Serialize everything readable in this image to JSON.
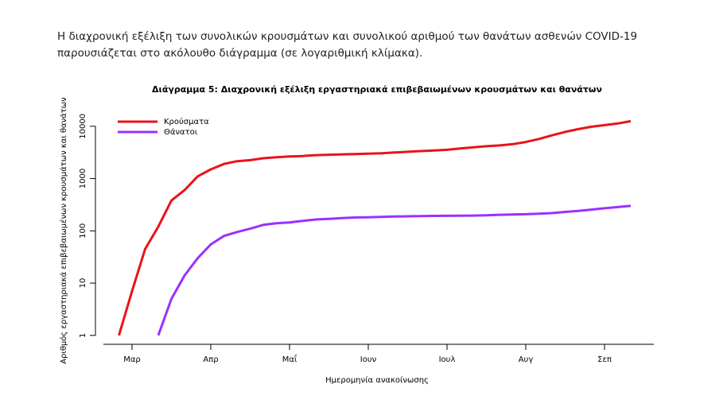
{
  "text": "Η διαχρονική εξέλιξη των συνολικών κρουσμάτων και συνολικού αριθμού των θανάτων ασθενών COVID-19 παρουσιάζεται στο ακόλουθο διάγραμμα (σε λογαριθμική κλίμακα).",
  "chart_data": {
    "type": "line",
    "title": "Διάγραμμα 5: Διαχρονική εξέλιξη εργαστηριακά επιβεβαιωμένων κρουσμάτων και θανάτων",
    "x_label": "Ημερομηνία ανακοίνωσης",
    "y_label": "Αριθμός εργαστηριακά επιβεβαιωμένων κρουσμάτων και θανάτων",
    "categories": [
      null,
      "Μαρ",
      null,
      null,
      null,
      null,
      null,
      "Απρ",
      null,
      null,
      null,
      null,
      null,
      "Μαΐ",
      null,
      null,
      null,
      null,
      null,
      "Ιουν",
      null,
      null,
      null,
      null,
      null,
      "Ιουλ",
      null,
      null,
      null,
      null,
      null,
      "Αυγ",
      null,
      null,
      null,
      null,
      null,
      "Σεπ",
      null,
      null
    ],
    "series": [
      {
        "name": "Κρούσματα",
        "color": "#e8131b",
        "values": [
          1,
          7,
          45,
          120,
          380,
          600,
          1100,
          1500,
          1900,
          2150,
          2250,
          2450,
          2550,
          2650,
          2700,
          2800,
          2850,
          2900,
          2950,
          3000,
          3050,
          3150,
          3250,
          3350,
          3450,
          3550,
          3750,
          3950,
          4150,
          4300,
          4550,
          5000,
          5700,
          6700,
          7800,
          8800,
          9800,
          10500,
          11300,
          12500
        ]
      },
      {
        "name": "Θάνατοι",
        "color": "#9b30ff",
        "values": [
          null,
          null,
          null,
          1,
          5,
          14,
          30,
          55,
          80,
          95,
          110,
          130,
          140,
          145,
          155,
          165,
          170,
          175,
          180,
          182,
          185,
          188,
          190,
          192,
          193,
          194,
          195,
          196,
          198,
          203,
          205,
          208,
          212,
          218,
          230,
          240,
          255,
          270,
          285,
          300
        ]
      }
    ],
    "ylim": [
      0.7,
      20000
    ],
    "yticks": [
      1,
      10,
      100,
      1000,
      10000
    ],
    "log_y": true,
    "legend": "top-left"
  }
}
